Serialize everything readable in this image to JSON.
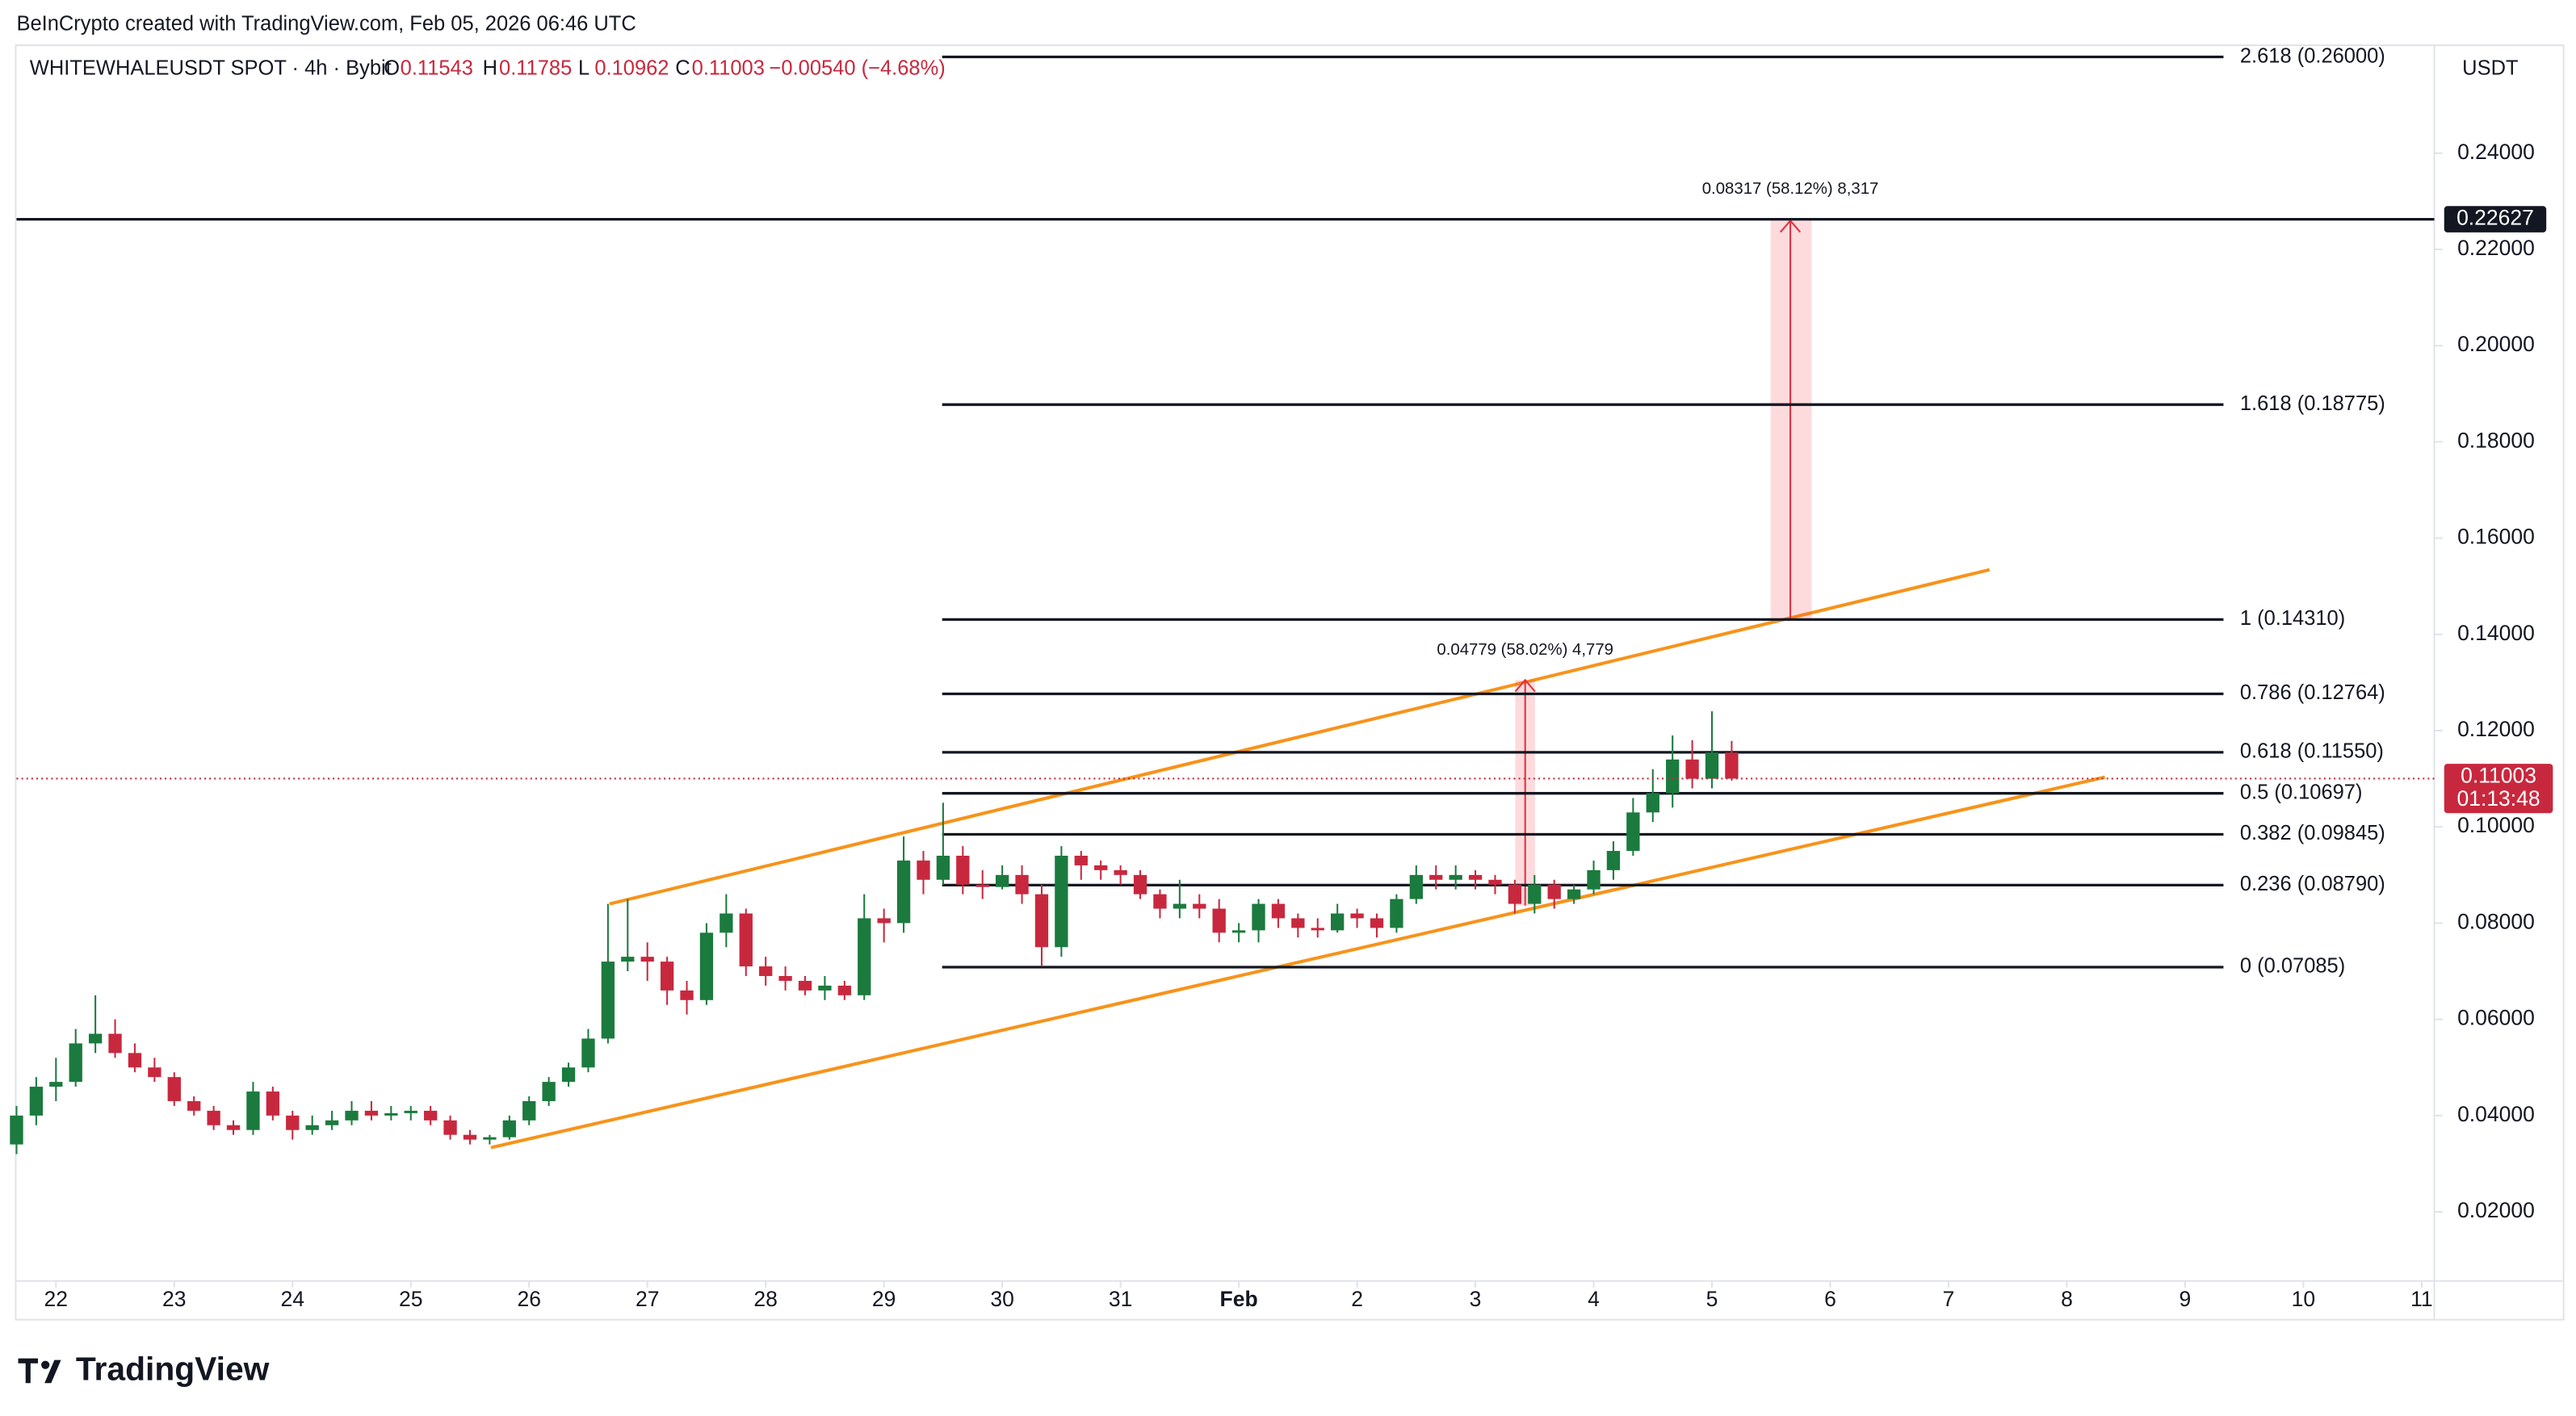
{
  "chart_data": {
    "type": "candlestick",
    "credit": "BeInCrypto created with TradingView.com, Feb 05, 2026 06:46 UTC",
    "symbol": "WHITEWHALEUSDT SPOT · 4h · Bybit",
    "ohlc_keys": [
      "O",
      "H",
      "L",
      "C"
    ],
    "change": "−0.00540 (−4.68%)",
    "currency": "USDT",
    "countdown": "01:13:48",
    "brand": "TradingView",
    "up_color": "#1b7a3e",
    "down_color": "#c8283e",
    "categories": [
      "22",
      "23",
      "24",
      "25",
      "26",
      "27",
      "28",
      "29",
      "30",
      "31",
      "Feb",
      "2",
      "3",
      "4",
      "5",
      "6",
      "7",
      "8",
      "9",
      "10",
      "11"
    ],
    "open": [
      0.034,
      0.04,
      0.046,
      0.047,
      0.055,
      0.057,
      0.053,
      0.05,
      0.048,
      0.043,
      0.041,
      0.038,
      0.037,
      0.045,
      0.04,
      0.037,
      0.038,
      0.039,
      0.041,
      0.04,
      0.0405,
      0.041,
      0.039,
      0.036,
      0.035,
      0.0355,
      0.039,
      0.043,
      0.047,
      0.05,
      0.056,
      0.072,
      0.073,
      0.072,
      0.066,
      0.064,
      0.078,
      0.082,
      0.071,
      0.069,
      0.068,
      0.066,
      0.067,
      0.065,
      0.081,
      0.08,
      0.093,
      0.089,
      0.094,
      0.088,
      0.0875,
      0.09,
      0.086,
      0.075,
      0.094,
      0.092,
      0.091,
      0.09,
      0.086,
      0.083,
      0.084,
      0.083,
      0.078,
      0.0785,
      0.084,
      0.081,
      0.079,
      0.0785,
      0.082,
      0.081,
      0.079,
      0.085,
      0.09,
      0.089,
      0.09,
      0.089,
      0.088,
      0.084,
      0.088,
      0.085,
      0.087,
      0.091,
      0.095,
      0.103,
      0.107,
      0.114,
      0.11,
      0.11543
    ],
    "high": [
      0.042,
      0.048,
      0.052,
      0.058,
      0.065,
      0.06,
      0.055,
      0.052,
      0.049,
      0.044,
      0.042,
      0.039,
      0.047,
      0.046,
      0.041,
      0.04,
      0.041,
      0.043,
      0.043,
      0.042,
      0.042,
      0.042,
      0.04,
      0.037,
      0.036,
      0.04,
      0.044,
      0.048,
      0.051,
      0.058,
      0.084,
      0.085,
      0.076,
      0.073,
      0.068,
      0.08,
      0.086,
      0.083,
      0.073,
      0.071,
      0.069,
      0.069,
      0.068,
      0.086,
      0.083,
      0.098,
      0.095,
      0.105,
      0.096,
      0.091,
      0.092,
      0.092,
      0.088,
      0.096,
      0.095,
      0.093,
      0.092,
      0.091,
      0.087,
      0.089,
      0.086,
      0.085,
      0.08,
      0.085,
      0.085,
      0.082,
      0.081,
      0.084,
      0.083,
      0.082,
      0.086,
      0.092,
      0.092,
      0.092,
      0.091,
      0.09,
      0.089,
      0.09,
      0.089,
      0.088,
      0.093,
      0.097,
      0.106,
      0.112,
      0.119,
      0.118,
      0.124,
      0.11785
    ],
    "low": [
      0.032,
      0.038,
      0.043,
      0.046,
      0.053,
      0.052,
      0.049,
      0.047,
      0.042,
      0.04,
      0.037,
      0.036,
      0.036,
      0.039,
      0.035,
      0.036,
      0.037,
      0.038,
      0.039,
      0.039,
      0.039,
      0.038,
      0.035,
      0.034,
      0.034,
      0.035,
      0.038,
      0.042,
      0.046,
      0.049,
      0.055,
      0.07,
      0.068,
      0.063,
      0.061,
      0.063,
      0.075,
      0.069,
      0.067,
      0.066,
      0.065,
      0.064,
      0.064,
      0.064,
      0.076,
      0.078,
      0.086,
      0.088,
      0.086,
      0.085,
      0.087,
      0.084,
      0.071,
      0.073,
      0.089,
      0.089,
      0.088,
      0.085,
      0.081,
      0.081,
      0.081,
      0.076,
      0.076,
      0.076,
      0.079,
      0.077,
      0.077,
      0.078,
      0.079,
      0.077,
      0.078,
      0.084,
      0.087,
      0.087,
      0.087,
      0.086,
      0.082,
      0.082,
      0.083,
      0.084,
      0.086,
      0.089,
      0.094,
      0.101,
      0.104,
      0.108,
      0.108,
      0.10962
    ],
    "close": [
      0.04,
      0.046,
      0.047,
      0.055,
      0.057,
      0.053,
      0.05,
      0.048,
      0.043,
      0.041,
      0.038,
      0.037,
      0.045,
      0.04,
      0.037,
      0.038,
      0.039,
      0.041,
      0.04,
      0.0405,
      0.041,
      0.039,
      0.036,
      0.035,
      0.0355,
      0.039,
      0.043,
      0.047,
      0.05,
      0.056,
      0.072,
      0.073,
      0.072,
      0.066,
      0.064,
      0.078,
      0.082,
      0.071,
      0.069,
      0.068,
      0.066,
      0.067,
      0.065,
      0.081,
      0.08,
      0.093,
      0.089,
      0.094,
      0.088,
      0.0875,
      0.09,
      0.086,
      0.075,
      0.094,
      0.092,
      0.091,
      0.09,
      0.086,
      0.083,
      0.084,
      0.083,
      0.078,
      0.0785,
      0.084,
      0.081,
      0.079,
      0.0785,
      0.082,
      0.081,
      0.079,
      0.085,
      0.09,
      0.089,
      0.09,
      0.089,
      0.088,
      0.084,
      0.088,
      0.085,
      0.087,
      0.091,
      0.095,
      0.103,
      0.107,
      0.114,
      0.11,
      0.11543,
      0.11003
    ],
    "ylim": [
      0.006,
      0.264
    ],
    "yticks": [
      {
        "value": 0.02,
        "label": "0.02000"
      },
      {
        "value": 0.04,
        "label": "0.04000"
      },
      {
        "value": 0.06,
        "label": "0.06000"
      },
      {
        "value": 0.08,
        "label": "0.08000"
      },
      {
        "value": 0.1,
        "label": "0.10000"
      },
      {
        "value": 0.12,
        "label": "0.12000"
      },
      {
        "value": 0.14,
        "label": "0.14000"
      },
      {
        "value": 0.16,
        "label": "0.16000"
      },
      {
        "value": 0.18,
        "label": "0.18000"
      },
      {
        "value": 0.2,
        "label": "0.20000"
      },
      {
        "value": 0.22,
        "label": "0.22000"
      },
      {
        "value": 0.24,
        "label": "0.24000"
      }
    ],
    "price_line": 0.22627,
    "fib_levels": [
      {
        "label": "2.618 (0.26000)",
        "value": 0.26
      },
      {
        "label": "1.618 (0.18775)",
        "value": 0.18775
      },
      {
        "label": "1 (0.14310)",
        "value": 0.1431
      },
      {
        "label": "0.786 (0.12764)",
        "value": 0.12764
      },
      {
        "label": "0.618 (0.11550)",
        "value": 0.1155
      },
      {
        "label": "0.5 (0.10697)",
        "value": 0.10697
      },
      {
        "label": "0.382 (0.09845)",
        "value": 0.09845
      },
      {
        "label": "0.236 (0.08790)",
        "value": 0.0879
      },
      {
        "label": "0 (0.07085)",
        "value": 0.07085
      }
    ],
    "measures": [
      {
        "label": "0.04779 (58.02%) 4,779"
      },
      {
        "label": "0.08317 (58.12%) 8,317"
      }
    ]
  }
}
